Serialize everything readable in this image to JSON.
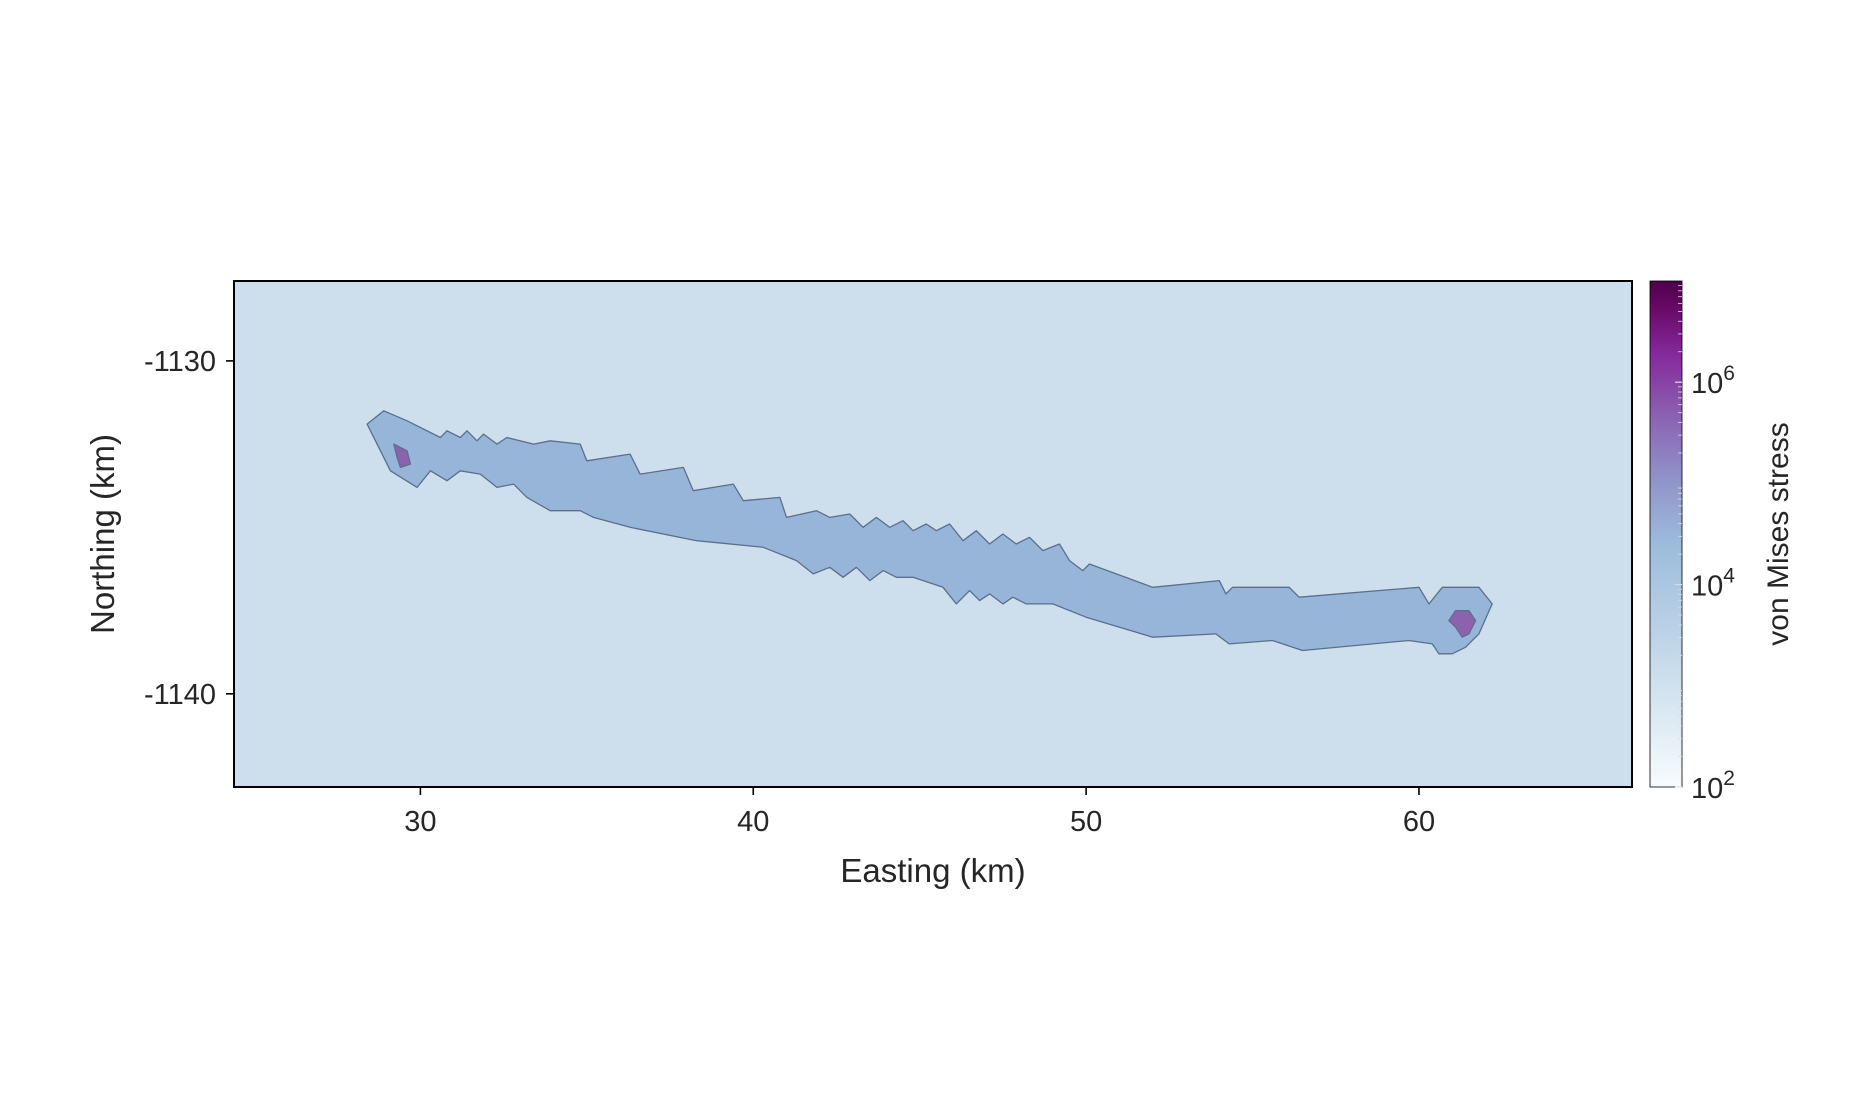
{
  "chart_data": {
    "type": "heatmap",
    "title": "",
    "xlabel": "Easting (km)",
    "ylabel": "Northing (km)",
    "xlim": [
      24.4,
      66.4
    ],
    "ylim": [
      -1142.8,
      -1127.6
    ],
    "x_ticks": [
      30,
      40,
      50,
      60
    ],
    "x_tick_labels": [
      "30",
      "40",
      "50",
      "60"
    ],
    "y_ticks": [
      -1130,
      -1140
    ],
    "y_tick_labels": [
      "-1130",
      "-1140"
    ],
    "grid": false,
    "colorbar": {
      "label": "von Mises stress",
      "scale": "log",
      "range": [
        100,
        10000000
      ],
      "ticks": [
        100,
        10000,
        1000000
      ],
      "tick_labels": [
        {
          "base": "10",
          "exp": "2"
        },
        {
          "base": "10",
          "exp": "4"
        },
        {
          "base": "10",
          "exp": "6"
        }
      ],
      "colors": [
        "#f7fcfd",
        "#dbe9f2",
        "#9cbcdc",
        "#8f8fc7",
        "#8a5fb0",
        "#84279a",
        "#6b0b6b",
        "#4d004b"
      ]
    },
    "background_value": 2500,
    "background_color": "#cddfec",
    "regions": [
      {
        "name": "glacier-band",
        "value": 11000,
        "color": "#97b5d8",
        "outline": [
          [
            28.9,
            -1131.5
          ],
          [
            29.6,
            -1131.8
          ],
          [
            30.6,
            -1132.3
          ],
          [
            30.8,
            -1132.1
          ],
          [
            31.2,
            -1132.3
          ],
          [
            31.4,
            -1132.1
          ],
          [
            31.7,
            -1132.4
          ],
          [
            31.9,
            -1132.2
          ],
          [
            32.3,
            -1132.5
          ],
          [
            32.6,
            -1132.3
          ],
          [
            33.4,
            -1132.5
          ],
          [
            33.9,
            -1132.4
          ],
          [
            34.8,
            -1132.5
          ],
          [
            35.0,
            -1133.0
          ],
          [
            36.3,
            -1132.8
          ],
          [
            36.6,
            -1133.4
          ],
          [
            37.9,
            -1133.2
          ],
          [
            38.2,
            -1133.9
          ],
          [
            39.4,
            -1133.7
          ],
          [
            39.7,
            -1134.2
          ],
          [
            40.8,
            -1134.1
          ],
          [
            41.0,
            -1134.7
          ],
          [
            41.9,
            -1134.5
          ],
          [
            42.3,
            -1134.7
          ],
          [
            42.9,
            -1134.6
          ],
          [
            43.3,
            -1135.0
          ],
          [
            43.7,
            -1134.7
          ],
          [
            44.1,
            -1135.0
          ],
          [
            44.5,
            -1134.8
          ],
          [
            44.8,
            -1135.1
          ],
          [
            45.2,
            -1134.9
          ],
          [
            45.5,
            -1135.1
          ],
          [
            45.9,
            -1134.9
          ],
          [
            46.3,
            -1135.4
          ],
          [
            46.7,
            -1135.1
          ],
          [
            47.1,
            -1135.5
          ],
          [
            47.5,
            -1135.2
          ],
          [
            47.9,
            -1135.5
          ],
          [
            48.3,
            -1135.3
          ],
          [
            48.7,
            -1135.7
          ],
          [
            49.2,
            -1135.5
          ],
          [
            49.5,
            -1136.0
          ],
          [
            49.9,
            -1136.3
          ],
          [
            50.1,
            -1136.1
          ],
          [
            52.0,
            -1136.8
          ],
          [
            54.0,
            -1136.6
          ],
          [
            54.2,
            -1137.0
          ],
          [
            54.4,
            -1136.8
          ],
          [
            56.1,
            -1136.8
          ],
          [
            56.4,
            -1137.1
          ],
          [
            60.0,
            -1136.8
          ],
          [
            60.3,
            -1137.3
          ],
          [
            60.7,
            -1136.8
          ],
          [
            61.8,
            -1136.8
          ],
          [
            62.2,
            -1137.3
          ],
          [
            61.8,
            -1138.2
          ],
          [
            61.4,
            -1138.6
          ],
          [
            61.0,
            -1138.8
          ],
          [
            60.6,
            -1138.8
          ],
          [
            60.4,
            -1138.5
          ],
          [
            59.7,
            -1138.4
          ],
          [
            56.5,
            -1138.7
          ],
          [
            55.6,
            -1138.4
          ],
          [
            54.3,
            -1138.5
          ],
          [
            53.9,
            -1138.2
          ],
          [
            52.0,
            -1138.3
          ],
          [
            50.0,
            -1137.7
          ],
          [
            49.0,
            -1137.3
          ],
          [
            48.2,
            -1137.3
          ],
          [
            47.8,
            -1137.1
          ],
          [
            47.5,
            -1137.3
          ],
          [
            47.1,
            -1137.0
          ],
          [
            46.8,
            -1137.2
          ],
          [
            46.5,
            -1136.9
          ],
          [
            46.1,
            -1137.3
          ],
          [
            45.7,
            -1136.8
          ],
          [
            44.8,
            -1136.5
          ],
          [
            44.3,
            -1136.5
          ],
          [
            43.9,
            -1136.3
          ],
          [
            43.5,
            -1136.6
          ],
          [
            43.1,
            -1136.2
          ],
          [
            42.7,
            -1136.5
          ],
          [
            42.3,
            -1136.2
          ],
          [
            41.8,
            -1136.4
          ],
          [
            41.3,
            -1136.0
          ],
          [
            40.3,
            -1135.6
          ],
          [
            38.3,
            -1135.4
          ],
          [
            36.3,
            -1135.0
          ],
          [
            35.2,
            -1134.7
          ],
          [
            34.8,
            -1134.5
          ],
          [
            33.9,
            -1134.5
          ],
          [
            33.2,
            -1134.1
          ],
          [
            32.8,
            -1133.7
          ],
          [
            32.3,
            -1133.8
          ],
          [
            31.8,
            -1133.4
          ],
          [
            31.2,
            -1133.3
          ],
          [
            30.8,
            -1133.6
          ],
          [
            30.3,
            -1133.3
          ],
          [
            29.9,
            -1133.8
          ],
          [
            29.1,
            -1133.3
          ],
          [
            28.4,
            -1131.9
          ]
        ]
      },
      {
        "name": "stress-spot-west",
        "value": 200000,
        "color": "#8d62ad",
        "outline": [
          [
            29.2,
            -1132.5
          ],
          [
            29.6,
            -1132.7
          ],
          [
            29.7,
            -1133.1
          ],
          [
            29.4,
            -1133.2
          ],
          [
            29.3,
            -1132.9
          ]
        ]
      },
      {
        "name": "stress-spot-east",
        "value": 200000,
        "color": "#8d62ad",
        "outline": [
          [
            61.1,
            -1137.5
          ],
          [
            61.5,
            -1137.5
          ],
          [
            61.7,
            -1137.8
          ],
          [
            61.5,
            -1138.2
          ],
          [
            61.3,
            -1138.3
          ],
          [
            61.1,
            -1138.0
          ],
          [
            60.9,
            -1137.8
          ]
        ]
      }
    ]
  }
}
